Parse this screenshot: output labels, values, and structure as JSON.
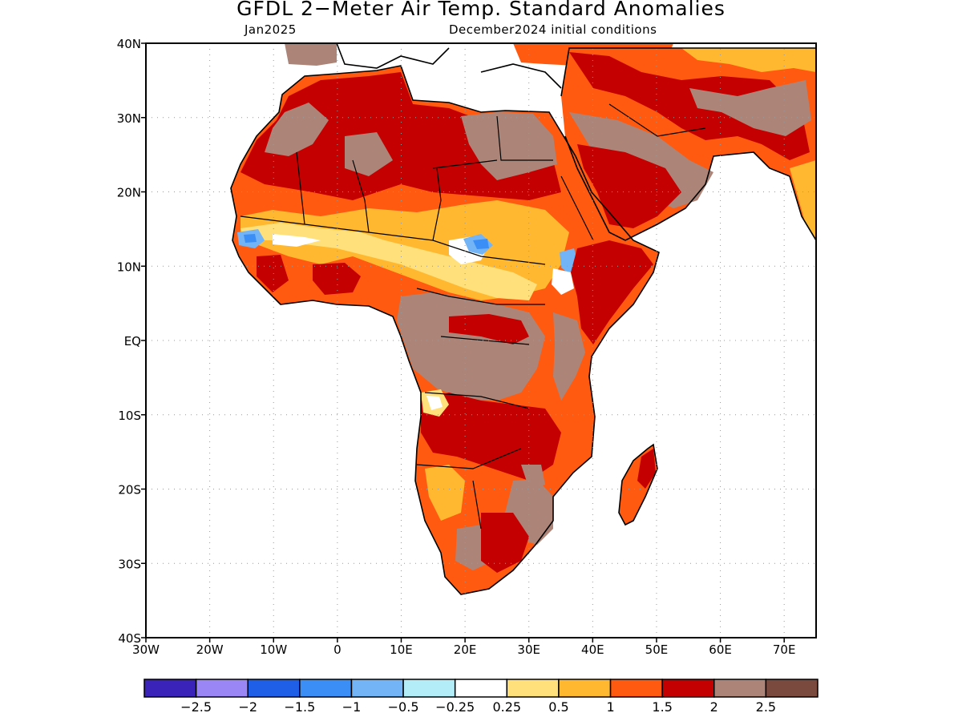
{
  "title": "GFDL 2−Meter Air Temp. Standard Anomalies",
  "subtitle_left": "Jan2025",
  "subtitle_right": "December2024 initial conditions",
  "map": {
    "lat_labels": [
      "40N",
      "30N",
      "20N",
      "10N",
      "EQ",
      "10S",
      "20S",
      "30S",
      "40S"
    ],
    "lon_labels": [
      "30W",
      "20W",
      "10W",
      "0",
      "10E",
      "20E",
      "30E",
      "40E",
      "50E",
      "60E",
      "70E"
    ],
    "lat_values": [
      40,
      30,
      20,
      10,
      0,
      -10,
      -20,
      -30,
      -40
    ],
    "lon_values": [
      -30,
      -20,
      -10,
      0,
      10,
      20,
      30,
      40,
      50,
      60,
      70
    ],
    "lon_range": [
      -30,
      75
    ],
    "lat_range": [
      -40,
      40
    ],
    "grid": "dotted"
  },
  "legend": {
    "colors": [
      "#3a23b8",
      "#9b86f5",
      "#1f5fe8",
      "#3a8ef5",
      "#73b4f7",
      "#b3eef8",
      "#ffffff",
      "#ffe07a",
      "#ffb830",
      "#ff5a10",
      "#c40000",
      "#ad8578",
      "#7a4a3e"
    ],
    "labels": [
      "−2.5",
      "−2",
      "−1.5",
      "−1",
      "−0.5",
      "−0.25",
      "0.25",
      "0.5",
      "1",
      "1.5",
      "2",
      "2.5"
    ]
  }
}
